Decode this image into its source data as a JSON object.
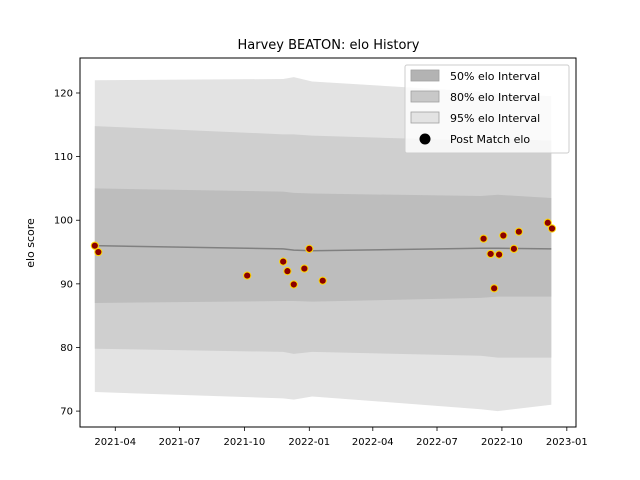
{
  "chart_data": {
    "type": "scatter",
    "title": "Harvey BEATON: elo History",
    "xlabel": "",
    "ylabel": "elo score",
    "xlim": [
      "2021-02-10",
      "2023-01-14"
    ],
    "ylim": [
      67.5,
      125.5
    ],
    "x_ticks": [
      "2021-04",
      "2021-07",
      "2021-10",
      "2022-01",
      "2022-04",
      "2022-07",
      "2022-10",
      "2023-01"
    ],
    "x_tick_dates": [
      "2021-04-01",
      "2021-07-01",
      "2021-10-01",
      "2022-01-01",
      "2022-04-01",
      "2022-07-01",
      "2022-10-01",
      "2023-01-01"
    ],
    "y_ticks": [
      70,
      80,
      90,
      100,
      110,
      120
    ],
    "grid": false,
    "legend": {
      "position": "top-right",
      "entries": [
        "50% elo Interval",
        "80% elo Interval",
        "95% elo Interval",
        "Post Match elo"
      ]
    },
    "colors": {
      "band_95": "#e3e3e3",
      "band_80": "#cfcfcf",
      "band_50": "#bdbdbd",
      "mean_line": "#808080",
      "point_fill": "#8b0000",
      "point_edge": "#ffd700"
    },
    "bands": {
      "x": [
        "2021-03-03",
        "2021-11-25",
        "2021-12-10",
        "2022-01-05",
        "2022-09-01",
        "2022-09-25",
        "2022-12-10"
      ],
      "mean": [
        96.0,
        95.5,
        95.3,
        95.2,
        95.6,
        95.6,
        95.5
      ],
      "p50": [
        [
          87.0,
          105.0
        ],
        [
          87.3,
          104.5
        ],
        [
          87.3,
          104.3
        ],
        [
          87.2,
          104.2
        ],
        [
          87.8,
          103.8
        ],
        [
          88.0,
          104.0
        ],
        [
          88.0,
          103.5
        ]
      ],
      "p80": [
        [
          79.8,
          114.8
        ],
        [
          79.3,
          113.5
        ],
        [
          79.0,
          113.5
        ],
        [
          79.3,
          113.3
        ],
        [
          78.7,
          112.5
        ],
        [
          78.4,
          112.8
        ],
        [
          78.4,
          112.5
        ]
      ],
      "p95": [
        [
          73.0,
          122.0
        ],
        [
          72.0,
          122.2
        ],
        [
          71.8,
          122.5
        ],
        [
          72.3,
          121.8
        ],
        [
          70.3,
          120.2
        ],
        [
          70.0,
          119.8
        ],
        [
          71.0,
          119.5
        ]
      ]
    },
    "points": [
      {
        "x": "2021-03-03",
        "y": 96.0
      },
      {
        "x": "2021-03-08",
        "y": 95.0
      },
      {
        "x": "2021-10-05",
        "y": 91.3
      },
      {
        "x": "2021-11-25",
        "y": 93.5
      },
      {
        "x": "2021-12-01",
        "y": 92.0
      },
      {
        "x": "2021-12-10",
        "y": 89.9
      },
      {
        "x": "2021-12-25",
        "y": 92.4
      },
      {
        "x": "2022-01-01",
        "y": 95.5
      },
      {
        "x": "2022-01-20",
        "y": 90.5
      },
      {
        "x": "2022-09-05",
        "y": 97.1
      },
      {
        "x": "2022-09-15",
        "y": 94.7
      },
      {
        "x": "2022-09-20",
        "y": 89.3
      },
      {
        "x": "2022-09-27",
        "y": 94.6
      },
      {
        "x": "2022-10-03",
        "y": 97.6
      },
      {
        "x": "2022-10-18",
        "y": 95.5
      },
      {
        "x": "2022-10-25",
        "y": 98.2
      },
      {
        "x": "2022-12-05",
        "y": 99.6
      },
      {
        "x": "2022-12-11",
        "y": 98.7
      }
    ]
  }
}
